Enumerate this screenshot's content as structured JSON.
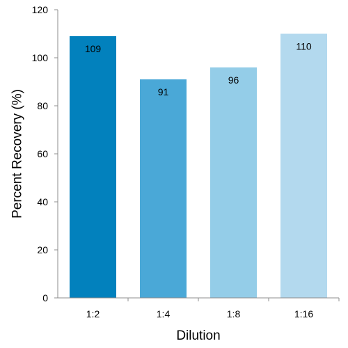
{
  "chart_data": {
    "type": "bar",
    "categories": [
      "1:2",
      "1:4",
      "1:8",
      "1:16"
    ],
    "values": [
      109,
      91,
      96,
      110
    ],
    "data_labels": [
      "109",
      "91",
      "96",
      "110"
    ],
    "bar_colors": [
      "#0281bd",
      "#4aa8d7",
      "#94cde8",
      "#b3d9ee"
    ],
    "xlabel": "Dilution",
    "ylabel": "Percent Recovery (%)",
    "ylim": [
      0,
      120
    ],
    "yticks": [
      0,
      20,
      40,
      60,
      80,
      100,
      120
    ],
    "grid": false,
    "legend": "none"
  }
}
